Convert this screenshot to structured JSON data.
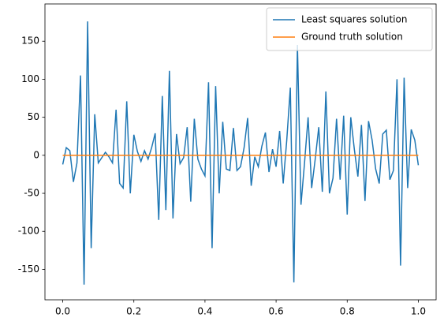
{
  "chart_data": {
    "type": "line",
    "x": [
      0,
      0.01,
      0.02,
      0.03,
      0.04,
      0.05,
      0.06,
      0.07,
      0.08,
      0.09,
      0.1,
      0.11,
      0.12,
      0.13,
      0.14,
      0.15,
      0.16,
      0.17,
      0.18,
      0.19,
      0.2,
      0.21,
      0.22,
      0.23,
      0.24,
      0.25,
      0.26,
      0.27,
      0.28,
      0.29,
      0.3,
      0.31,
      0.32,
      0.33,
      0.34,
      0.35,
      0.36,
      0.37,
      0.38,
      0.39,
      0.4,
      0.41,
      0.42,
      0.43,
      0.44,
      0.45,
      0.46,
      0.47,
      0.48,
      0.49,
      0.5,
      0.51,
      0.52,
      0.53,
      0.54,
      0.55,
      0.56,
      0.57,
      0.58,
      0.59,
      0.6,
      0.61,
      0.62,
      0.63,
      0.64,
      0.65,
      0.66,
      0.67,
      0.68,
      0.69,
      0.7,
      0.71,
      0.72,
      0.73,
      0.74,
      0.75,
      0.76,
      0.77,
      0.78,
      0.79,
      0.8,
      0.81,
      0.82,
      0.83,
      0.84,
      0.85,
      0.86,
      0.87,
      0.88,
      0.89,
      0.9,
      0.91,
      0.92,
      0.93,
      0.94,
      0.95,
      0.96,
      0.97,
      0.98,
      0.99,
      1
    ],
    "series": [
      {
        "name": "Least squares solution",
        "color": "#1f77b4",
        "values": [
          -12,
          10,
          6,
          -35,
          -10,
          105,
          -170,
          176,
          -122,
          54,
          -10,
          -3,
          4,
          -2,
          -10,
          60,
          -37,
          -43,
          71,
          -50,
          27,
          5,
          -8,
          6,
          -5,
          10,
          29,
          -85,
          78,
          -72,
          111,
          -83,
          28,
          -11,
          -3,
          37,
          -61,
          48,
          -5,
          -18,
          -27,
          96,
          -122,
          91,
          -50,
          44,
          -18,
          -20,
          36,
          -20,
          -15,
          10,
          49,
          -40,
          -2,
          -15,
          12,
          30,
          -22,
          8,
          -15,
          32,
          -37,
          20,
          89,
          -167,
          145,
          -65,
          -10,
          50,
          -43,
          -5,
          37,
          -48,
          84,
          -50,
          -30,
          48,
          -32,
          52,
          -78,
          50,
          8,
          -28,
          40,
          -60,
          45,
          20,
          -18,
          -37,
          28,
          33,
          -32,
          -20,
          100,
          -145,
          102,
          -43,
          34,
          20,
          -13
        ]
      },
      {
        "name": "Ground truth solution",
        "color": "#ff7f0e",
        "values": [
          0,
          0,
          0,
          0,
          0,
          0,
          0,
          0,
          0,
          0,
          0,
          0,
          0,
          0,
          0,
          0,
          0,
          0,
          0,
          0,
          0,
          0,
          0,
          0,
          0,
          0,
          0,
          0,
          0,
          0,
          0,
          0,
          0,
          0,
          0,
          0,
          0,
          0,
          0,
          0,
          0,
          0,
          0,
          0,
          0,
          0,
          0,
          0,
          0,
          0,
          0,
          0,
          0,
          0,
          0,
          0,
          0,
          0,
          0,
          0,
          0,
          0,
          0,
          0,
          0,
          0,
          0,
          0,
          0,
          0,
          0,
          0,
          0,
          0,
          0,
          0,
          0,
          0,
          0,
          0,
          0,
          0,
          0,
          0,
          0,
          0,
          0,
          0,
          0,
          0,
          0,
          0,
          0,
          0,
          0,
          0,
          0,
          0,
          0,
          0,
          0
        ]
      }
    ],
    "xlim": [
      -0.05,
      1.05
    ],
    "ylim": [
      -190,
      199
    ],
    "xticks": [
      {
        "value": 0,
        "label": "0.0"
      },
      0.2,
      0.4,
      0.6,
      0.8,
      {
        "value": 1,
        "label": "1.0"
      }
    ],
    "yticks": [
      -150,
      -100,
      -50,
      0,
      50,
      100,
      150
    ],
    "legend": "upper right",
    "grid": false
  }
}
